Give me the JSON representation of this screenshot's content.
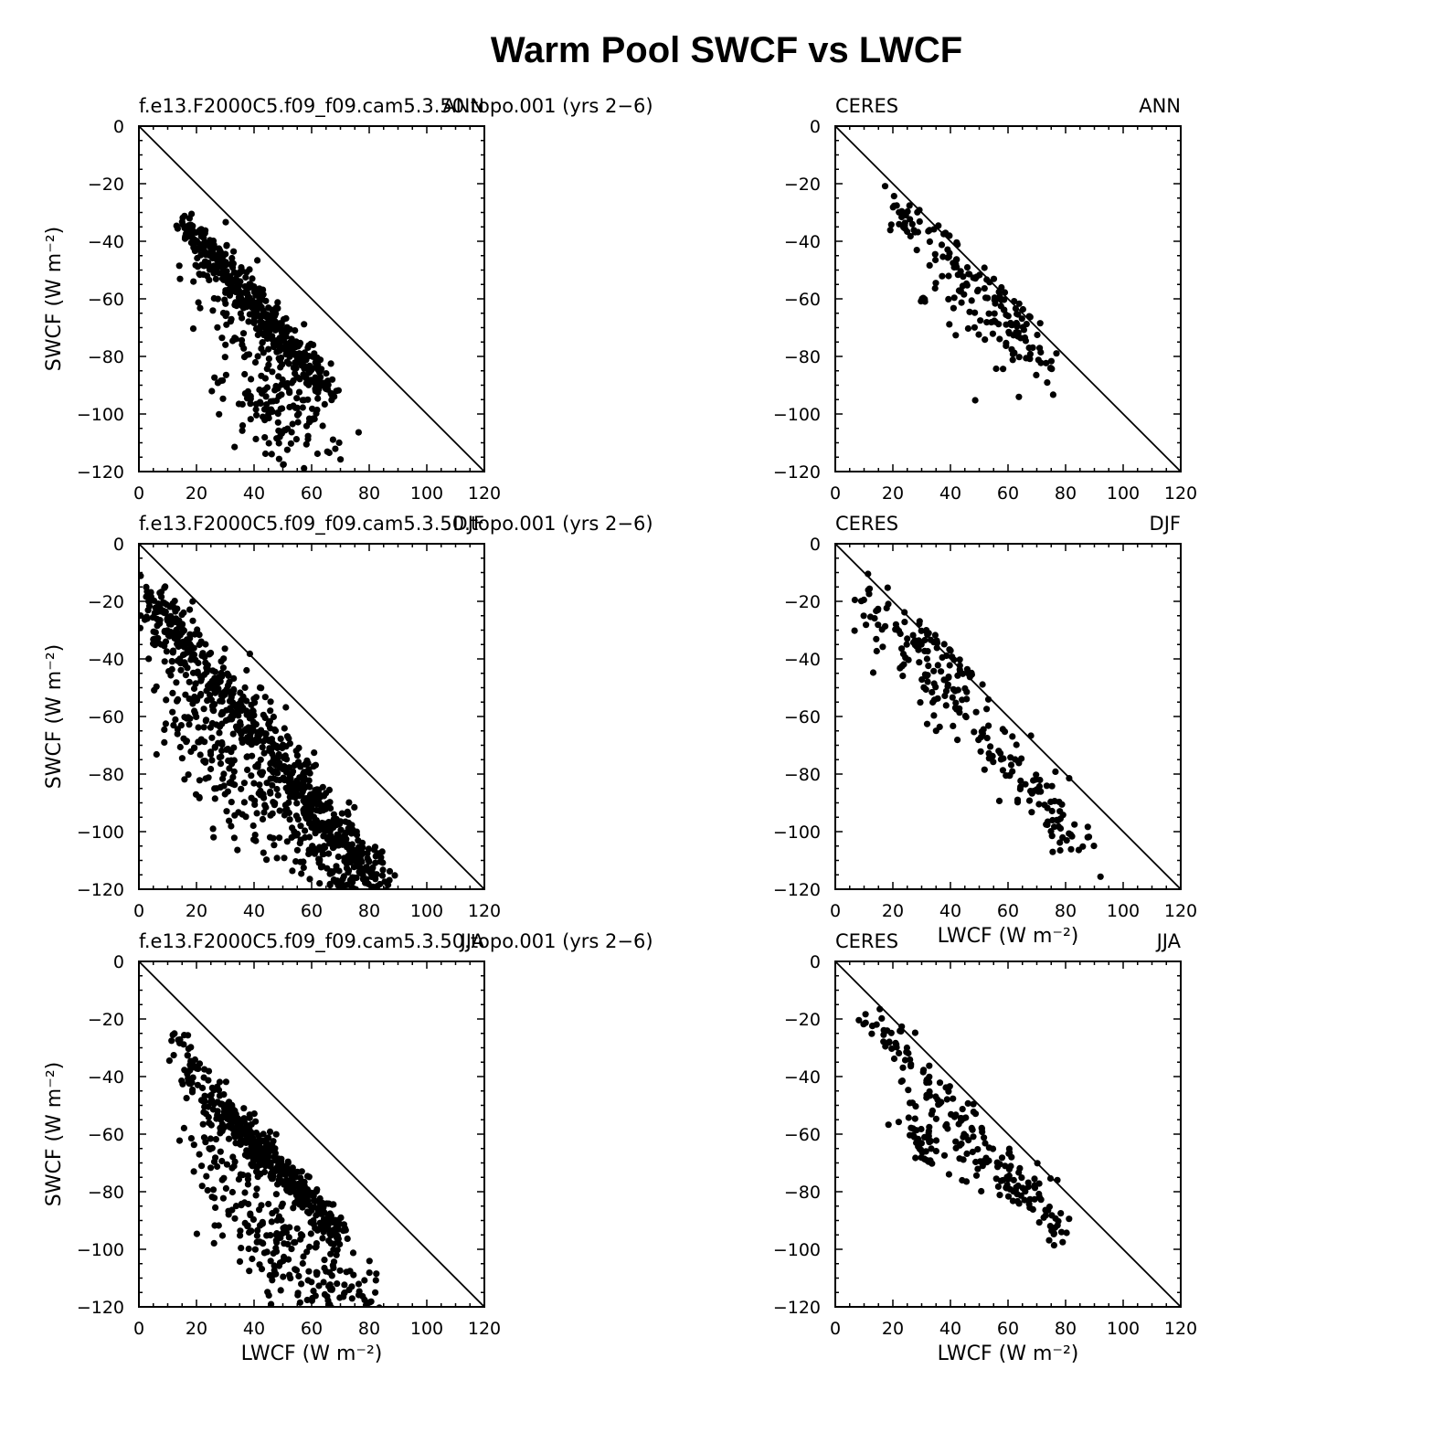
{
  "figure": {
    "title": "Warm Pool SWCF vs LWCF"
  },
  "colors": {
    "points": "#000000",
    "frame": "#000000",
    "background": "#ffffff"
  },
  "chart_data": [
    {
      "type": "scatter",
      "left_label": "f.e13.F2000C5.f09_f09.cam5.3.50.topo.001  (yrs 2−6)",
      "season": "ANN",
      "xlabel": "",
      "ylabel": "SWCF  (W m⁻²)",
      "xlim": [
        0,
        120
      ],
      "ylim": [
        -120,
        0
      ],
      "xticks": [
        "0",
        "20",
        "40",
        "60",
        "80",
        "100",
        "120"
      ],
      "yticks": [
        "0",
        "−20",
        "−40",
        "−60",
        "−80",
        "−100",
        "−120"
      ],
      "reference_line": "one-to-one",
      "n_points": 650,
      "clouds": [
        {
          "x": [
            16,
            65
          ],
          "y": [
            -35,
            -90
          ],
          "spread": 2.5,
          "frac": 0.62
        },
        {
          "x": [
            22,
            62
          ],
          "y": [
            -48,
            -100
          ],
          "spread": 5,
          "frac": 0.22
        },
        {
          "x": [
            36,
            70
          ],
          "y": [
            -92,
            -120
          ],
          "spread": 7,
          "frac": 0.13
        },
        {
          "x": [
            26,
            48
          ],
          "y": [
            -87,
            -100
          ],
          "spread": 2,
          "frac": 0.03
        }
      ]
    },
    {
      "type": "scatter",
      "left_label": "CERES",
      "season": "ANN",
      "xlabel": "",
      "ylabel": "",
      "xlim": [
        0,
        120
      ],
      "ylim": [
        -120,
        0
      ],
      "xticks": [
        "0",
        "20",
        "40",
        "60",
        "80",
        "100",
        "120"
      ],
      "yticks": [
        "0",
        "−20",
        "−40",
        "−60",
        "−80",
        "−100",
        "−120"
      ],
      "reference_line": "one-to-one",
      "n_points": 190,
      "clouds": [
        {
          "x": [
            22,
            73
          ],
          "y": [
            -28,
            -80
          ],
          "spread": 3.5,
          "frac": 0.72
        },
        {
          "x": [
            40,
            72
          ],
          "y": [
            -56,
            -88
          ],
          "spread": 5,
          "frac": 0.24
        },
        {
          "x": [
            30,
            31
          ],
          "y": [
            -60,
            -61
          ],
          "spread": 0.5,
          "frac": 0.04
        }
      ]
    },
    {
      "type": "scatter",
      "left_label": "f.e13.F2000C5.f09_f09.cam5.3.50.topo.001  (yrs 2−6)",
      "season": "DJF",
      "xlabel": "",
      "ylabel": "SWCF  (W m⁻²)",
      "xlim": [
        0,
        120
      ],
      "ylim": [
        -120,
        0
      ],
      "xticks": [
        "0",
        "20",
        "40",
        "60",
        "80",
        "100",
        "120"
      ],
      "yticks": [
        "0",
        "−20",
        "−40",
        "−60",
        "−80",
        "−100",
        "−120"
      ],
      "reference_line": "one-to-one",
      "n_points": 950,
      "clouds": [
        {
          "x": [
            3,
            84
          ],
          "y": [
            -18,
            -118
          ],
          "spread": 3,
          "frac": 0.5
        },
        {
          "x": [
            6,
            70
          ],
          "y": [
            -30,
            -108
          ],
          "spread": 6,
          "frac": 0.3
        },
        {
          "x": [
            12,
            40
          ],
          "y": [
            -60,
            -100
          ],
          "spread": 6,
          "frac": 0.1
        },
        {
          "x": [
            50,
            80
          ],
          "y": [
            -100,
            -120
          ],
          "spread": 5,
          "frac": 0.1
        }
      ]
    },
    {
      "type": "scatter",
      "left_label": "CERES",
      "season": "DJF",
      "xlabel": "LWCF  (W m⁻²)",
      "ylabel": "",
      "xlim": [
        0,
        120
      ],
      "ylim": [
        -120,
        0
      ],
      "xticks": [
        "0",
        "20",
        "40",
        "60",
        "80",
        "100",
        "120"
      ],
      "yticks": [
        "0",
        "−20",
        "−40",
        "−60",
        "−80",
        "−100",
        "−120"
      ],
      "reference_line": "one-to-one",
      "n_points": 240,
      "clouds": [
        {
          "x": [
            10,
            85
          ],
          "y": [
            -17,
            -103
          ],
          "spread": 4,
          "frac": 0.62
        },
        {
          "x": [
            14,
            45
          ],
          "y": [
            -30,
            -62
          ],
          "spread": 5,
          "frac": 0.18
        },
        {
          "x": [
            32,
            55
          ],
          "y": [
            -25,
            -48
          ],
          "spread": 2.5,
          "frac": 0.12
        },
        {
          "x": [
            70,
            91
          ],
          "y": [
            -95,
            -110
          ],
          "spread": 3,
          "frac": 0.08
        }
      ]
    },
    {
      "type": "scatter",
      "left_label": "f.e13.F2000C5.f09_f09.cam5.3.50.topo.001  (yrs 2−6)",
      "season": "JJA",
      "xlabel": "LWCF  (W m⁻²)",
      "ylabel": "SWCF  (W m⁻²)",
      "xlim": [
        0,
        120
      ],
      "ylim": [
        -120,
        0
      ],
      "xticks": [
        "0",
        "20",
        "40",
        "60",
        "80",
        "100",
        "120"
      ],
      "yticks": [
        "0",
        "−20",
        "−40",
        "−60",
        "−80",
        "−100",
        "−120"
      ],
      "reference_line": "one-to-one",
      "n_points": 700,
      "clouds": [
        {
          "x": [
            28,
            70
          ],
          "y": [
            -50,
            -95
          ],
          "spread": 2.5,
          "frac": 0.55
        },
        {
          "x": [
            13,
            26
          ],
          "y": [
            -30,
            -50
          ],
          "spread": 3,
          "frac": 0.1
        },
        {
          "x": [
            20,
            45
          ],
          "y": [
            -60,
            -95
          ],
          "spread": 5,
          "frac": 0.12
        },
        {
          "x": [
            40,
            78
          ],
          "y": [
            -95,
            -118
          ],
          "spread": 6,
          "frac": 0.23
        }
      ]
    },
    {
      "type": "scatter",
      "left_label": "CERES",
      "season": "JJA",
      "xlabel": "LWCF  (W m⁻²)",
      "ylabel": "",
      "xlim": [
        0,
        120
      ],
      "ylim": [
        -120,
        0
      ],
      "xticks": [
        "0",
        "20",
        "40",
        "60",
        "80",
        "100",
        "120"
      ],
      "yticks": [
        "0",
        "−20",
        "−40",
        "−60",
        "−80",
        "−100",
        "−120"
      ],
      "reference_line": "one-to-one",
      "n_points": 240,
      "clouds": [
        {
          "x": [
            10,
            80
          ],
          "y": [
            -18,
            -95
          ],
          "spread": 3,
          "frac": 0.62
        },
        {
          "x": [
            25,
            70
          ],
          "y": [
            -55,
            -82
          ],
          "spread": 5,
          "frac": 0.28
        },
        {
          "x": [
            28,
            32
          ],
          "y": [
            -60,
            -68
          ],
          "spread": 2,
          "frac": 0.1
        }
      ]
    }
  ]
}
